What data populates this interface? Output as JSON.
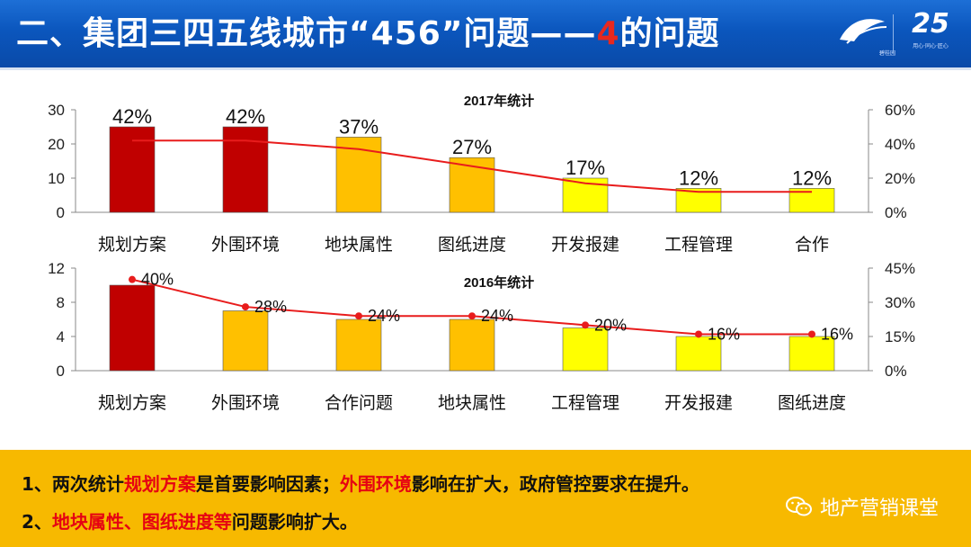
{
  "header": {
    "title_pre": "二、集团三四五线城市“456”问题——",
    "title_highlight": "4",
    "title_post": "的问题",
    "logo_caption": "碧桂园",
    "anniversary_number": "25",
    "anniversary_sub": "用心·同心·匠心"
  },
  "chart_data": [
    {
      "type": "bar",
      "title": "2017年统计",
      "categories": [
        "规划方案",
        "外围环境",
        "地块属性",
        "图纸进度",
        "开发报建",
        "工程管理",
        "合作"
      ],
      "values": [
        25,
        25,
        22,
        16,
        10,
        7,
        7
      ],
      "bar_colors": [
        "#c00000",
        "#c00000",
        "#ffc000",
        "#ffc000",
        "#ffff00",
        "#ffff00",
        "#ffff00"
      ],
      "line_series": [
        42,
        42,
        37,
        27,
        17,
        12,
        12
      ],
      "line_labels": [
        "42%",
        "42%",
        "37%",
        "27%",
        "17%",
        "12%",
        "12%"
      ],
      "ylim": [
        0,
        30
      ],
      "yticks": [
        0,
        10,
        20,
        30
      ],
      "y2lim": [
        0,
        60
      ],
      "y2ticks": [
        "0%",
        "20%",
        "40%",
        "60%"
      ],
      "line_color": "#e81c1c",
      "markers": false
    },
    {
      "type": "bar",
      "title": "2016年统计",
      "categories": [
        "规划方案",
        "外围环境",
        "合作问题",
        "地块属性",
        "工程管理",
        "开发报建",
        "图纸进度"
      ],
      "values": [
        10,
        7,
        6,
        6,
        5,
        4,
        4
      ],
      "bar_colors": [
        "#c00000",
        "#ffc000",
        "#ffc000",
        "#ffc000",
        "#ffff00",
        "#ffff00",
        "#ffff00"
      ],
      "line_series": [
        40,
        28,
        24,
        24,
        20,
        16,
        16
      ],
      "line_labels": [
        "40%",
        "28%",
        "24%",
        "24%",
        "20%",
        "16%",
        "16%"
      ],
      "ylim": [
        0,
        12
      ],
      "yticks": [
        0,
        4,
        8,
        12
      ],
      "y2lim": [
        0,
        45
      ],
      "y2ticks": [
        "0%",
        "15%",
        "30%",
        "45%"
      ],
      "line_color": "#e81c1c",
      "markers": true
    }
  ],
  "notes": {
    "line1_pre": "1、两次统计",
    "line1_red1": "规划方案",
    "line1_mid": "是首要影响因素；",
    "line1_red2": "外围环境",
    "line1_post": "影响在扩大，政府管控要求在提升。",
    "line2_pre": "2、",
    "line2_red": "地块属性、图纸进度等",
    "line2_post": "问题影响扩大。"
  },
  "watermark": {
    "text": "地产营销课堂",
    "icon": "wechat-icon"
  }
}
